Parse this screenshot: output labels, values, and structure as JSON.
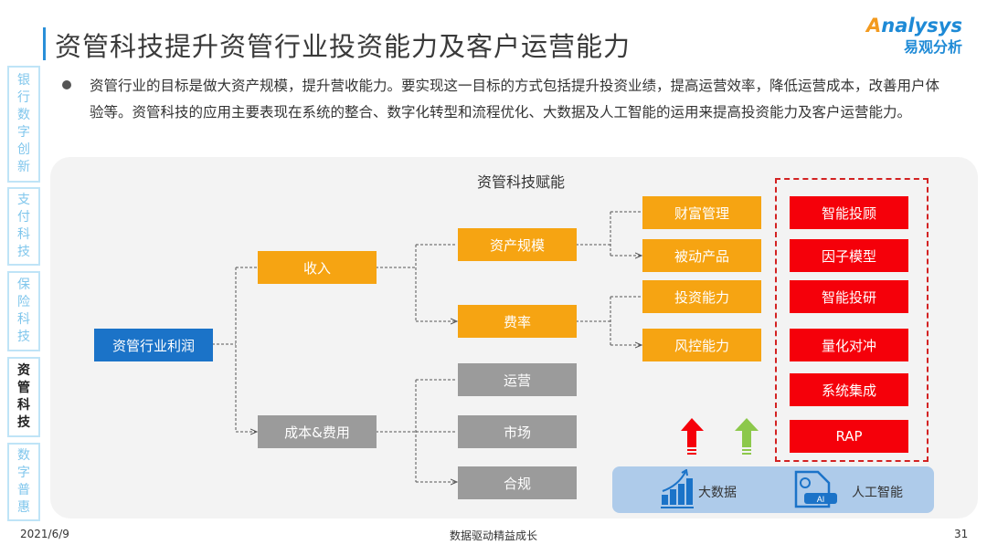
{
  "header": {
    "title": "资管科技提升资管行业投资能力及客户运营能力",
    "logo_en": "nalysys",
    "logo_en_mark": "A",
    "logo_cn": "易观分析"
  },
  "sidebar": {
    "items": [
      {
        "label": "银行数字创新",
        "active": false
      },
      {
        "label": "支付科技",
        "active": false
      },
      {
        "label": "保险科技",
        "active": false
      },
      {
        "label": "资管科技",
        "active": true
      },
      {
        "label": "数字普惠",
        "active": false
      }
    ]
  },
  "intro": "资管行业的目标是做大资产规模，提升营收能力。要实现这一目标的方式包括提升投资业绩，提高运营效率，降低运营成本，改善用户体验等。资管科技的应用主要表现在系统的整合、数字化转型和流程优化、大数据及人工智能的运用来提高投资能力及客户运营能力。",
  "diagram": {
    "title": "资管科技赋能",
    "root": "资管行业利润",
    "level1": [
      "收入",
      "成本&费用"
    ],
    "income_children": [
      "资产规模",
      "费率"
    ],
    "cost_children": [
      "运营",
      "市场",
      "合规"
    ],
    "level3": [
      "财富管理",
      "被动产品",
      "投资能力",
      "风控能力"
    ],
    "tech": [
      "智能投顾",
      "因子模型",
      "智能投研",
      "量化对冲",
      "系统集成",
      "RAP"
    ],
    "base": [
      "大数据",
      "人工智能"
    ],
    "ai_badge": "AI",
    "colors": {
      "root": "#1b73c8",
      "income": "#f6a412",
      "cost": "#9b9b9b",
      "tech": "#f5000a",
      "arrow_red": "#f5000a",
      "arrow_green": "#8cc84b"
    }
  },
  "footer": {
    "date": "2021/6/9",
    "slogan": "数据驱动精益成长",
    "page": "31"
  }
}
